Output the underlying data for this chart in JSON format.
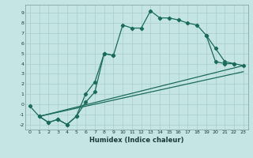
{
  "xlabel": "Humidex (Indice chaleur)",
  "xlim": [
    -0.5,
    23.5
  ],
  "ylim": [
    -2.5,
    9.8
  ],
  "xticks": [
    0,
    1,
    2,
    3,
    4,
    5,
    6,
    7,
    8,
    9,
    10,
    11,
    12,
    13,
    14,
    15,
    16,
    17,
    18,
    19,
    20,
    21,
    22,
    23
  ],
  "yticks": [
    -2,
    -1,
    0,
    1,
    2,
    3,
    4,
    5,
    6,
    7,
    8,
    9
  ],
  "bg_color": "#c5e5e5",
  "grid_color": "#aacccc",
  "line_color": "#1a6b5a",
  "line1_x": [
    0,
    1,
    2,
    3,
    4,
    5,
    6,
    7,
    8,
    9,
    10,
    11,
    12,
    13,
    14,
    15,
    16,
    17,
    18,
    19,
    20,
    21,
    22
  ],
  "line1_y": [
    -0.2,
    -1.2,
    -1.8,
    -1.5,
    -2.0,
    -1.2,
    1.0,
    2.2,
    5.0,
    4.8,
    7.8,
    7.5,
    7.5,
    9.2,
    8.5,
    8.5,
    8.3,
    8.0,
    7.8,
    6.8,
    4.2,
    4.0,
    4.0
  ],
  "line2a_x": [
    1,
    2,
    3,
    4,
    5,
    6,
    7,
    8,
    9
  ],
  "line2a_y": [
    -1.2,
    -1.8,
    -1.5,
    -2.0,
    -1.2,
    0.2,
    1.2,
    5.0,
    4.8
  ],
  "line2b_x": [
    19,
    20,
    21,
    22,
    23
  ],
  "line2b_y": [
    6.8,
    5.5,
    4.2,
    4.0,
    3.8
  ],
  "line3_x": [
    1,
    23
  ],
  "line3_y": [
    -1.2,
    3.8
  ],
  "line4_x": [
    1,
    23
  ],
  "line4_y": [
    -1.2,
    3.2
  ]
}
